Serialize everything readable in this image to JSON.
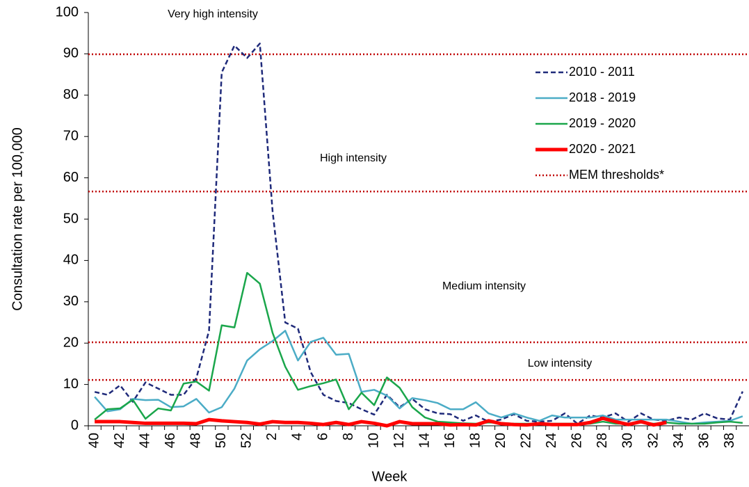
{
  "chart_data": {
    "type": "line",
    "x_label": "Week",
    "y_label": "Consultation rate per 100,000",
    "categories": [
      "40",
      null,
      "42",
      null,
      "44",
      null,
      "46",
      null,
      "48",
      null,
      "50",
      null,
      "52",
      null,
      "2",
      null,
      "4",
      null,
      "6",
      null,
      "8",
      null,
      "10",
      null,
      "12",
      null,
      "14",
      null,
      "16",
      null,
      "18",
      null,
      "20",
      null,
      "22",
      null,
      "24",
      null,
      "26",
      null,
      "28",
      null,
      "30",
      null,
      "32",
      null,
      "34",
      null,
      "36",
      null,
      "38",
      null
    ],
    "ylim": [
      0,
      100
    ],
    "yticks": [
      0,
      10,
      20,
      30,
      40,
      50,
      60,
      70,
      80,
      90,
      100
    ],
    "series": [
      {
        "name": "2010 - 2011",
        "color": "#1f2a7a",
        "style": "dashed",
        "line_width": 2.5,
        "values": [
          8.2,
          7.5,
          9.8,
          5.8,
          10.5,
          9,
          7.5,
          7.5,
          11.5,
          23,
          85.5,
          92,
          89,
          92.5,
          52,
          25,
          23.5,
          13,
          7.5,
          6,
          5.5,
          4,
          2.7,
          7.5,
          4.5,
          6.5,
          4,
          3,
          2.8,
          1.2,
          2.5,
          1,
          1.5,
          2.8,
          1.2,
          1,
          1.2,
          3,
          0.5,
          2.5,
          2,
          3,
          1,
          3,
          1.5,
          1.2,
          2,
          1.5,
          3,
          1.8,
          1.5,
          8.3
        ]
      },
      {
        "name": "2018 - 2019",
        "color": "#4bacc6",
        "style": "solid",
        "line_width": 2.5,
        "values": [
          7,
          3.5,
          4,
          6.5,
          6.2,
          6.3,
          4.5,
          4.7,
          6.5,
          3.2,
          4.5,
          9,
          15.8,
          18.5,
          20.5,
          23,
          15.8,
          20.3,
          21.3,
          17.2,
          17.4,
          8.2,
          8.7,
          7.3,
          4.2,
          6.7,
          6.2,
          5.5,
          4,
          4,
          5.7,
          3,
          2,
          3,
          2,
          1.2,
          2.5,
          2,
          2,
          2,
          2.5,
          1.5,
          1.5,
          1.5,
          1.5,
          1.5,
          1,
          0.5,
          0.8,
          1,
          1.2,
          2.3
        ]
      },
      {
        "name": "2019 - 2020",
        "color": "#1aa64b",
        "style": "solid",
        "line_width": 2.5,
        "values": [
          1.5,
          4,
          4.2,
          6.3,
          1.7,
          4.2,
          3.7,
          10.2,
          10.7,
          8.5,
          24.3,
          23.8,
          37,
          34.4,
          22.5,
          14.3,
          8.7,
          9.6,
          10.3,
          11.2,
          4,
          8,
          5,
          11.7,
          9.2,
          4.5,
          2,
          1,
          0.8,
          0.6,
          0.5,
          0.8,
          0.7,
          0.5,
          0.5,
          0.5,
          0.5,
          0.5,
          0.5,
          0.5,
          1,
          0.5,
          0.5,
          0.8,
          0.5,
          0.8,
          0.5,
          0.5,
          0.5,
          0.8,
          1,
          0.7
        ]
      },
      {
        "name": "2020 - 2021",
        "color": "#ff0000",
        "style": "solid",
        "line_width": 5,
        "values": [
          1,
          1,
          1,
          0.8,
          0.6,
          0.6,
          0.6,
          0.6,
          0.5,
          1.5,
          1.2,
          1,
          0.8,
          0.4,
          1,
          0.8,
          0.8,
          0.6,
          0.3,
          0.8,
          0.3,
          1,
          0.6,
          0,
          1,
          0.5,
          0.5,
          0.5,
          0.2,
          0.3,
          0.2,
          1.2,
          0.5,
          0.3,
          0.2,
          0.5,
          0.3,
          0.3,
          0.3,
          0.8,
          1.8,
          1,
          0.3,
          1,
          0.2,
          0.8,
          null,
          null,
          null,
          null,
          null,
          null
        ]
      }
    ],
    "thresholds": {
      "name": "MEM thresholds*",
      "color": "#c00000",
      "style": "dotted",
      "values": [
        11.1,
        20.2,
        56.7,
        89.9
      ]
    },
    "annotations": [
      "Low intensity",
      "Medium intensity",
      "High intensity",
      "Very high intensity"
    ]
  }
}
